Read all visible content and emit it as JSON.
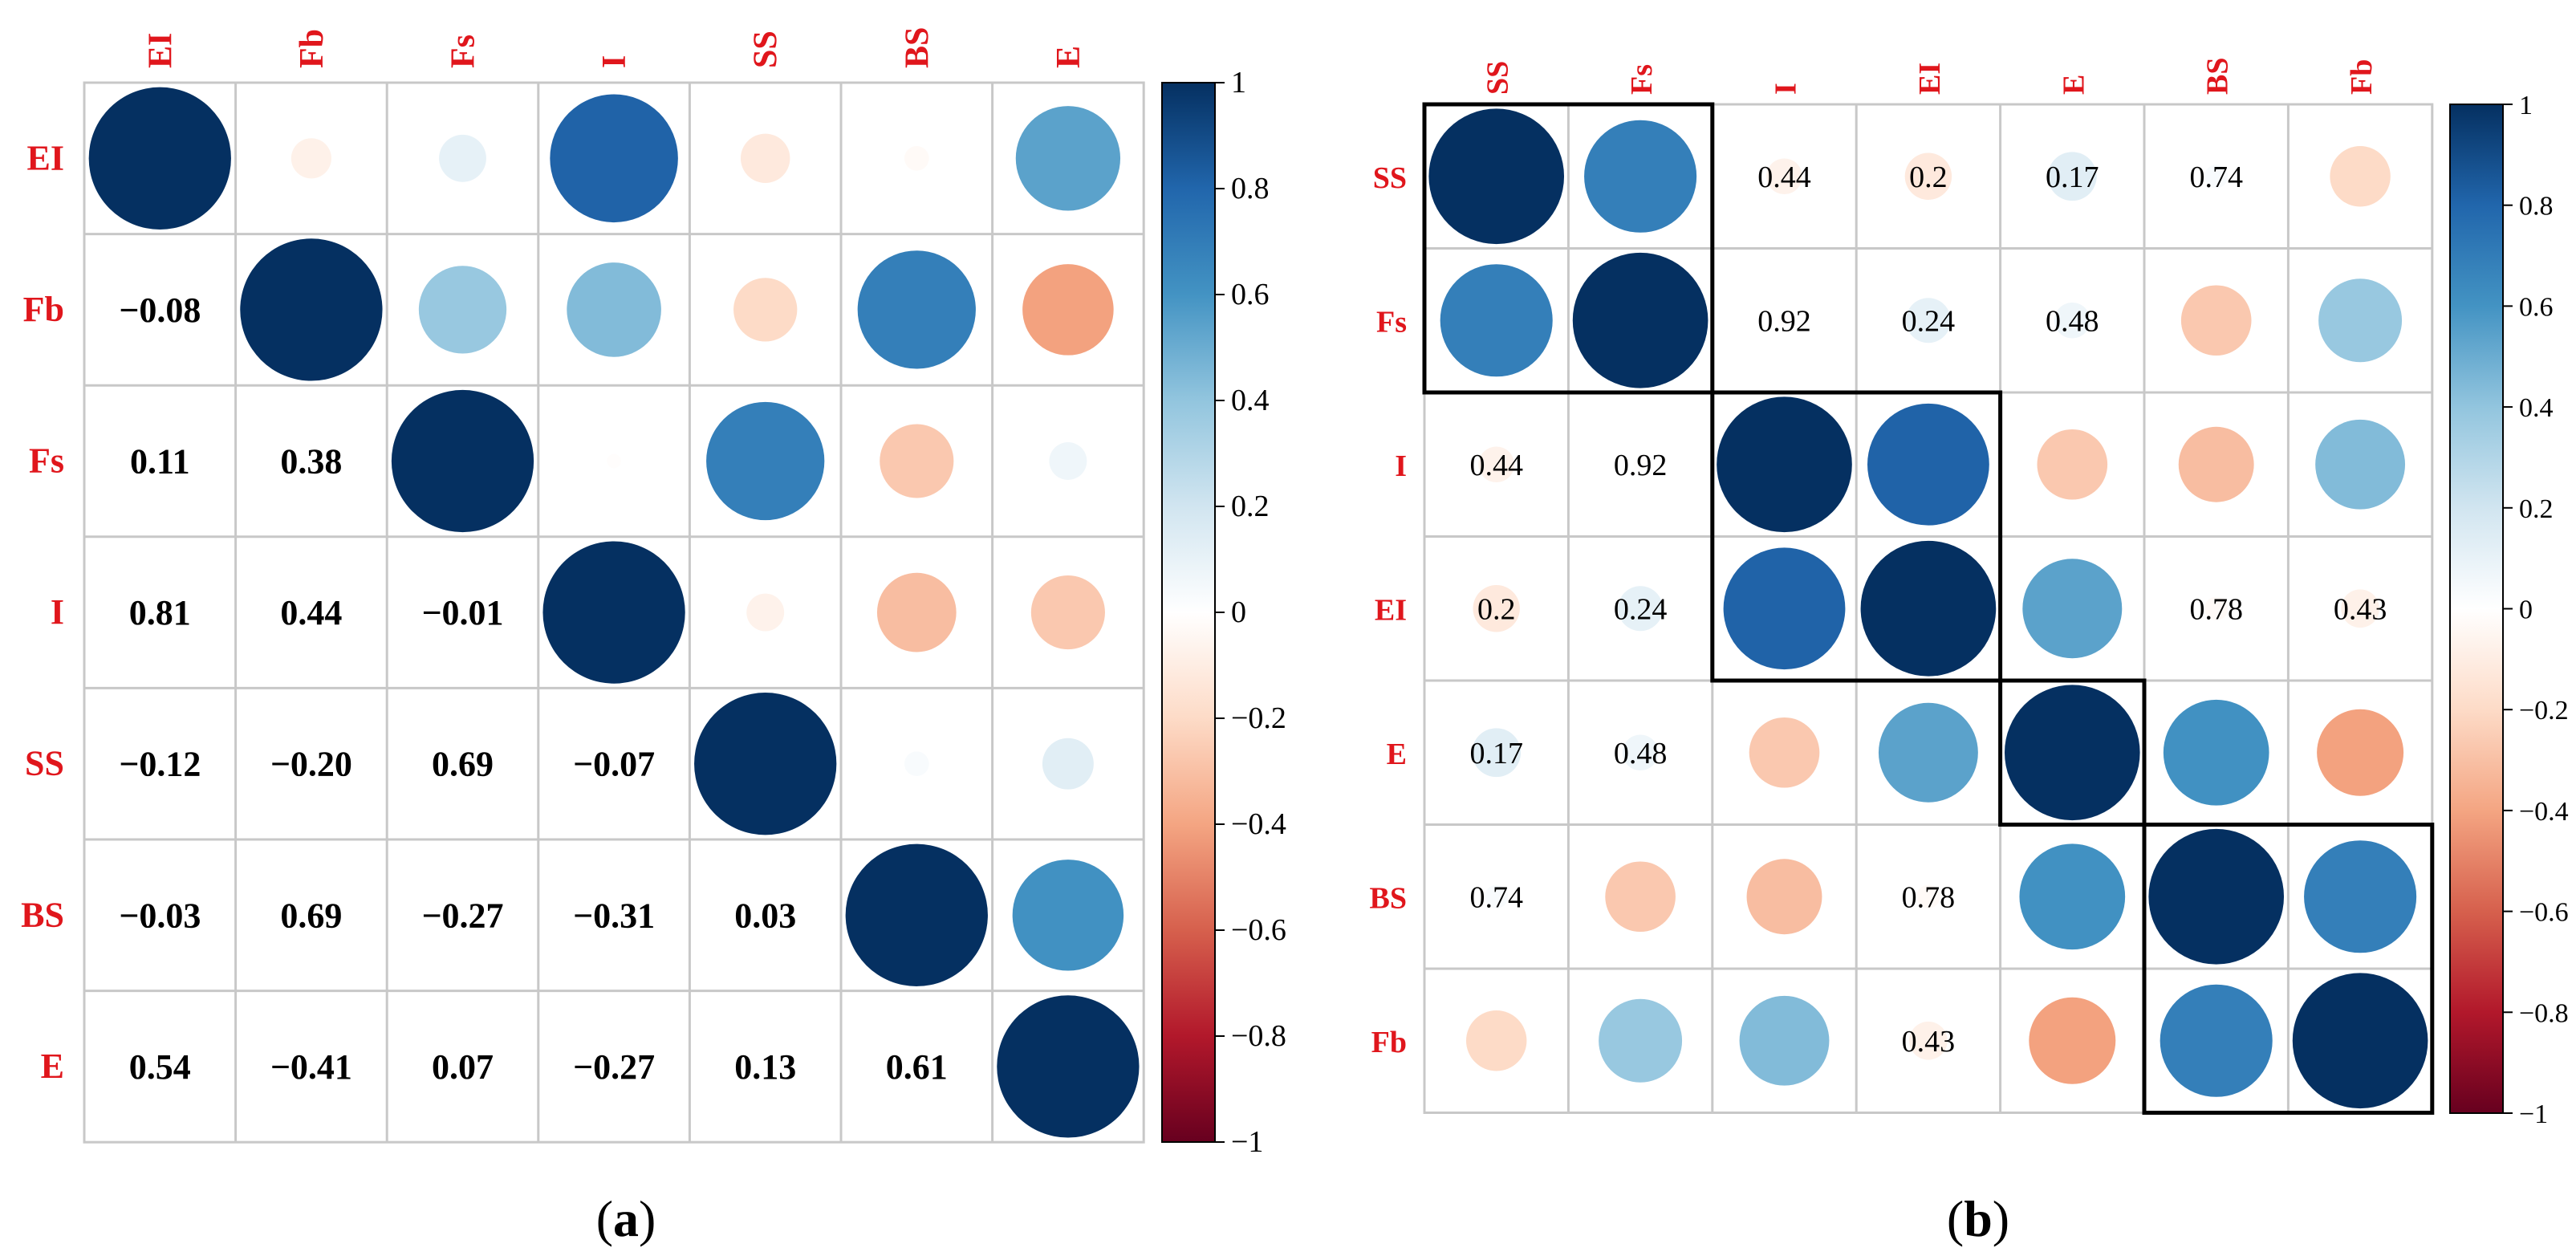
{
  "chart_data": [
    {
      "type": "heatmap",
      "subtype": "correlation-matrix (mixed: circles upper, numbers lower)",
      "panel_label_prefix": "(",
      "panel_letter": "a",
      "panel_label_suffix": ")",
      "variables": [
        "EI",
        "Fb",
        "Fs",
        "I",
        "SS",
        "BS",
        "E"
      ],
      "matrix": [
        [
          1.0,
          -0.08,
          0.11,
          0.81,
          -0.12,
          -0.03,
          0.54
        ],
        [
          -0.08,
          1.0,
          0.38,
          0.44,
          -0.2,
          0.69,
          -0.41
        ],
        [
          0.11,
          0.38,
          1.0,
          -0.01,
          0.69,
          -0.27,
          0.07
        ],
        [
          0.81,
          0.44,
          -0.01,
          1.0,
          -0.07,
          -0.31,
          -0.27
        ],
        [
          -0.12,
          -0.2,
          0.69,
          -0.07,
          1.0,
          0.03,
          0.13
        ],
        [
          -0.03,
          0.69,
          -0.27,
          -0.31,
          0.03,
          1.0,
          0.61
        ],
        [
          0.54,
          -0.41,
          0.07,
          -0.27,
          0.13,
          0.61,
          1.0
        ]
      ],
      "lower_labels": [
        [
          "",
          "",
          "",
          "",
          "",
          "",
          ""
        ],
        [
          "−0.08",
          "",
          "",
          "",
          "",
          "",
          ""
        ],
        [
          "0.11",
          "0.38",
          "",
          "",
          "",
          "",
          ""
        ],
        [
          "0.81",
          "0.44",
          "−0.01",
          "",
          "",
          "",
          ""
        ],
        [
          "−0.12",
          "−0.20",
          "0.69",
          "−0.07",
          "",
          "",
          ""
        ],
        [
          "−0.03",
          "0.69",
          "−0.27",
          "−0.31",
          "0.03",
          "",
          ""
        ],
        [
          "0.54",
          "−0.41",
          "0.07",
          "−0.27",
          "0.13",
          "0.61",
          ""
        ]
      ],
      "colorbar": {
        "range": [
          -1,
          1
        ],
        "ticks": [
          "1",
          "0.8",
          "0.6",
          "0.4",
          "0.2",
          "0",
          "−0.2",
          "−0.4",
          "−0.6",
          "−0.8",
          "−1"
        ]
      }
    },
    {
      "type": "heatmap",
      "subtype": "correlation-matrix (hierarchically clustered, circles + numbers)",
      "panel_label_prefix": "(",
      "panel_letter": "b",
      "panel_label_suffix": ")",
      "variables": [
        "SS",
        "Fs",
        "I",
        "EI",
        "E",
        "BS",
        "Fb"
      ],
      "matrix": [
        [
          1.0,
          0.69,
          -0.07,
          -0.12,
          0.13,
          0.03,
          -0.2
        ],
        [
          0.69,
          1.0,
          -0.01,
          0.11,
          0.07,
          -0.27,
          0.38
        ],
        [
          -0.07,
          -0.01,
          1.0,
          0.81,
          -0.27,
          -0.31,
          0.44
        ],
        [
          -0.12,
          0.11,
          0.81,
          1.0,
          0.54,
          -0.03,
          -0.08
        ],
        [
          0.13,
          0.07,
          -0.27,
          0.54,
          1.0,
          0.61,
          -0.41
        ],
        [
          0.03,
          -0.27,
          -0.31,
          -0.03,
          0.61,
          1.0,
          0.69
        ],
        [
          -0.2,
          0.38,
          0.44,
          -0.08,
          -0.41,
          0.69,
          1.0
        ]
      ],
      "cell_labels": [
        [
          "",
          "",
          "0.44",
          "0.2",
          "0.17",
          "0.74",
          ""
        ],
        [
          "",
          "",
          "0.92",
          "0.24",
          "0.48",
          "",
          ""
        ],
        [
          "0.44",
          "0.92",
          "",
          "",
          "",
          "",
          ""
        ],
        [
          "0.2",
          "0.24",
          "",
          "",
          "",
          "0.78",
          "0.43"
        ],
        [
          "0.17",
          "0.48",
          "",
          "",
          "",
          "",
          ""
        ],
        [
          "0.74",
          "",
          "",
          "0.78",
          "",
          "",
          ""
        ],
        [
          "",
          "",
          "",
          "0.43",
          "",
          "",
          ""
        ]
      ],
      "cluster_boxes": [
        {
          "rows": [
            "SS",
            "Fs"
          ]
        },
        {
          "rows": [
            "I",
            "EI"
          ]
        },
        {
          "rows": [
            "E"
          ]
        },
        {
          "rows": [
            "BS",
            "Fb"
          ]
        }
      ],
      "colorbar": {
        "range": [
          -1,
          1
        ],
        "ticks": [
          "1",
          "0.8",
          "0.6",
          "0.4",
          "0.2",
          "0",
          "−0.2",
          "−0.4",
          "−0.6",
          "−0.8",
          "−1"
        ]
      }
    }
  ]
}
